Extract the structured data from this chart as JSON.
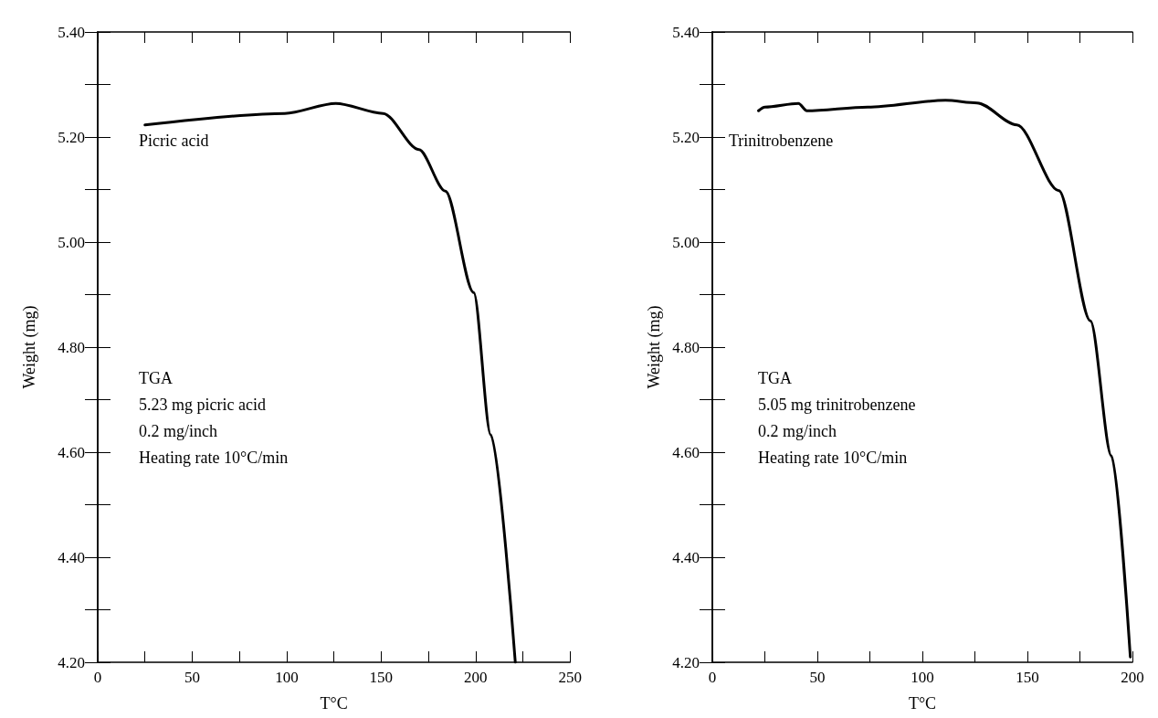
{
  "chart_data": [
    {
      "type": "line",
      "xlabel": "T°C",
      "ylabel": "Weight (mg)",
      "xlim": [
        0,
        250
      ],
      "ylim": [
        4.2,
        5.4
      ],
      "xticks": [
        0,
        {
          "value": 25,
          "label": null
        },
        50,
        {
          "value": 75,
          "label": null
        },
        100,
        {
          "value": 125,
          "label": null
        },
        150,
        {
          "value": 175,
          "label": null
        },
        200,
        {
          "value": 225,
          "label": null
        },
        250
      ],
      "yticks": [
        {
          "value": 4.2,
          "label": "4.20"
        },
        {
          "value": 4.3,
          "label": null
        },
        {
          "value": 4.4,
          "label": "4.40"
        },
        {
          "value": 4.5,
          "label": null
        },
        {
          "value": 4.6,
          "label": "4.60"
        },
        {
          "value": 4.7,
          "label": null
        },
        {
          "value": 4.8,
          "label": "4.80"
        },
        {
          "value": 4.9,
          "label": null
        },
        {
          "value": 5.0,
          "label": "5.00"
        },
        {
          "value": 5.1,
          "label": null
        },
        {
          "value": 5.2,
          "label": "5.20"
        },
        {
          "value": 5.3,
          "label": null
        },
        {
          "value": 5.4,
          "label": "5.40"
        }
      ],
      "series": [
        {
          "name": "Picric acid",
          "color": "#000000",
          "x": [
            25,
            99,
            126,
            151,
            170,
            184,
            199,
            208,
            221
          ],
          "values": [
            5.223,
            5.245,
            5.264,
            5.245,
            5.176,
            5.097,
            4.904,
            4.633,
            4.2
          ]
        }
      ],
      "marker": "none",
      "line_style": "solid",
      "grid": false,
      "legend": false,
      "annotations": [
        "TGA",
        "5.23 mg picric acid",
        "0.2 mg/inch",
        "Heating rate 10°C/min"
      ]
    },
    {
      "type": "line",
      "xlabel": "T°C",
      "ylabel": "Weight (mg)",
      "xlim": [
        0,
        200
      ],
      "ylim": [
        4.2,
        5.4
      ],
      "xticks": [
        0,
        {
          "value": 25,
          "label": null
        },
        50,
        {
          "value": 75,
          "label": null
        },
        100,
        {
          "value": 125,
          "label": null
        },
        150,
        {
          "value": 175,
          "label": null
        },
        200
      ],
      "yticks": [
        {
          "value": 4.2,
          "label": "4.20"
        },
        {
          "value": 4.3,
          "label": null
        },
        {
          "value": 4.4,
          "label": "4.40"
        },
        {
          "value": 4.5,
          "label": null
        },
        {
          "value": 4.6,
          "label": "4.60"
        },
        {
          "value": 4.7,
          "label": null
        },
        {
          "value": 4.8,
          "label": "4.80"
        },
        {
          "value": 4.9,
          "label": null
        },
        {
          "value": 5.0,
          "label": "5.00"
        },
        {
          "value": 5.1,
          "label": null
        },
        {
          "value": 5.2,
          "label": "5.20"
        },
        {
          "value": 5.3,
          "label": null
        },
        {
          "value": 5.4,
          "label": "5.40"
        }
      ],
      "series": [
        {
          "name": "Trinitrobenzene",
          "color": "#000000",
          "x": [
            22,
            25,
            41,
            45,
            74,
            111,
            126,
            145,
            165,
            180,
            190,
            199
          ],
          "values": [
            5.25,
            5.257,
            5.264,
            5.25,
            5.257,
            5.27,
            5.265,
            5.223,
            5.098,
            4.85,
            4.593,
            4.21
          ]
        }
      ],
      "marker": "none",
      "line_style": "solid",
      "grid": false,
      "legend": false,
      "annotations": [
        "TGA",
        "5.05 mg trinitrobenzene",
        "0.2 mg/inch",
        "Heating rate 10°C/min"
      ]
    }
  ]
}
